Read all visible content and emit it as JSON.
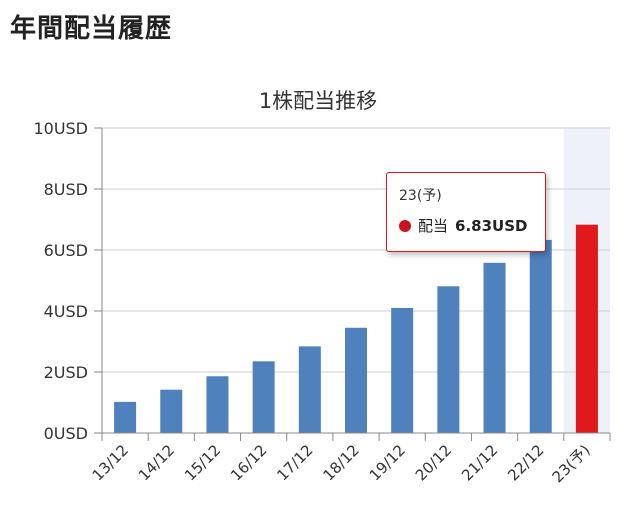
{
  "page": {
    "heading": "年間配当履歴"
  },
  "colors": {
    "bar": "#4f81bd",
    "bar_forecast": "#e0191c",
    "highlight_band": "#eef2f8",
    "grid": "#cfcfcf",
    "axis": "#888888",
    "tooltip_border": "#d61a1a",
    "tooltip_marker": "#c8141e"
  },
  "tooltip": {
    "category": "23(予)",
    "series_label": "配当",
    "value": "6.83USD"
  },
  "chart_data": {
    "type": "bar",
    "title": "1株配当推移",
    "xlabel": "",
    "ylabel": "",
    "categories": [
      "13/12",
      "14/12",
      "15/12",
      "16/12",
      "17/12",
      "18/12",
      "19/12",
      "20/12",
      "21/12",
      "22/12",
      "23(予)"
    ],
    "series": [
      {
        "values": [
          1.02,
          1.42,
          1.86,
          2.35,
          2.84,
          3.45,
          4.1,
          4.81,
          5.58,
          6.33,
          6.83
        ]
      }
    ],
    "forecast_index": 10,
    "highlighted_index": 10,
    "ylim": [
      0,
      10
    ],
    "yticks": [
      0,
      2,
      4,
      6,
      8,
      10
    ],
    "ytick_labels": [
      "0USD",
      "2USD",
      "4USD",
      "6USD",
      "8USD",
      "10USD"
    ],
    "grid": true,
    "legend": "none"
  }
}
